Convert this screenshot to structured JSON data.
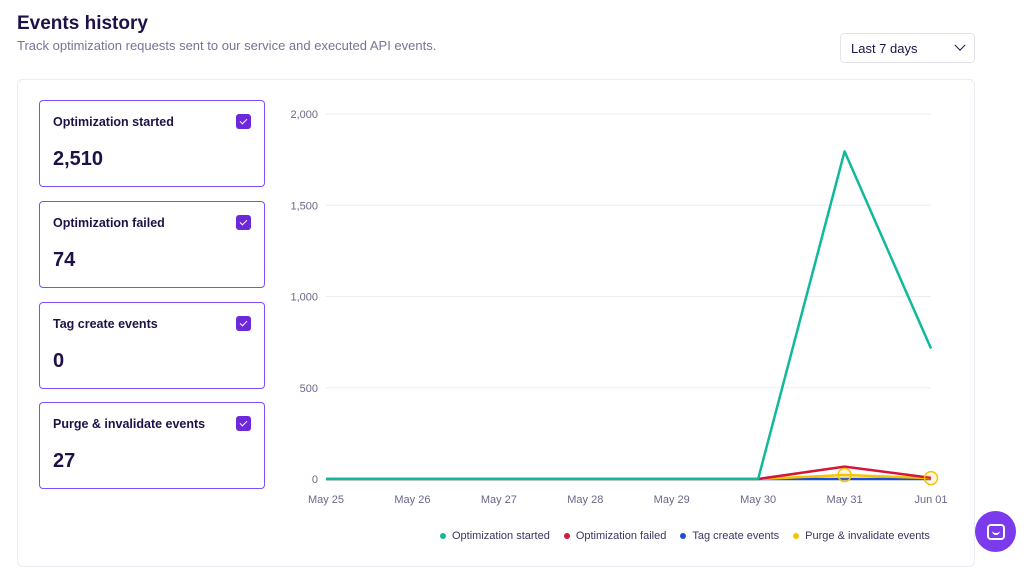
{
  "header": {
    "title": "Events history",
    "subtitle": "Track optimization requests sent to our service and executed API events."
  },
  "range_select": {
    "value": "Last 7 days",
    "icon": "chevron-down-icon"
  },
  "cards": [
    {
      "label": "Optimization started",
      "value": "2,510",
      "checked": true
    },
    {
      "label": "Optimization failed",
      "value": "74",
      "checked": true
    },
    {
      "label": "Tag create events",
      "value": "0",
      "checked": true
    },
    {
      "label": "Purge & invalidate events",
      "value": "27",
      "checked": true
    }
  ],
  "chart_data": {
    "type": "line",
    "title": "",
    "xlabel": "",
    "ylabel": "",
    "x": [
      "May 25",
      "May 26",
      "May 27",
      "May 28",
      "May 29",
      "May 30",
      "May 31",
      "Jun 01"
    ],
    "ylim": [
      0,
      2000
    ],
    "yticks": [
      0,
      500,
      1000,
      1500,
      2000
    ],
    "ytick_labels": [
      "0",
      "500",
      "1,000",
      "1,500",
      "2,000"
    ],
    "grid": true,
    "legend_position": "bottom-right",
    "series": [
      {
        "name": "Optimization started",
        "color": "#10b999",
        "values": [
          0,
          0,
          0,
          0,
          0,
          0,
          1795,
          715
        ]
      },
      {
        "name": "Optimization failed",
        "color": "#d4163c",
        "values": [
          0,
          0,
          0,
          0,
          0,
          0,
          68,
          6
        ]
      },
      {
        "name": "Tag create events",
        "color": "#1d4ed8",
        "values": [
          0,
          0,
          0,
          0,
          0,
          0,
          0,
          0
        ]
      },
      {
        "name": "Purge & invalidate events",
        "color": "#f5c400",
        "values": [
          0,
          0,
          0,
          0,
          0,
          0,
          22,
          5
        ]
      }
    ]
  },
  "chat_button": {
    "icon": "chat-icon"
  }
}
